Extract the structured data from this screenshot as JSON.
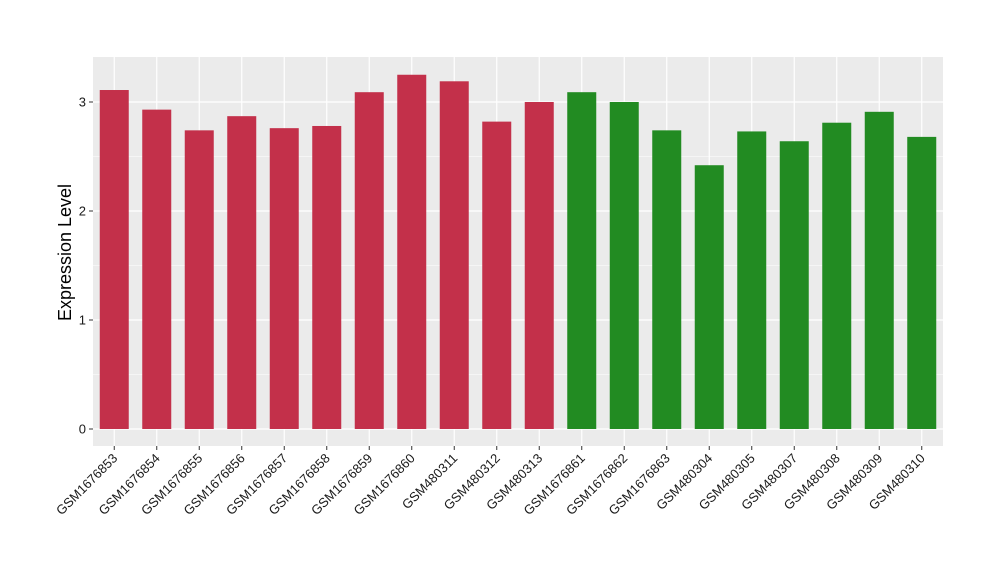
{
  "chart_data": {
    "type": "bar",
    "title": "",
    "xlabel": "",
    "ylabel": "Expression Level",
    "ylim": [
      0,
      3.4
    ],
    "yticks": [
      0,
      1,
      2,
      3
    ],
    "grid": true,
    "colors": {
      "group_a": "#C3304A",
      "group_b": "#228B22",
      "panel": "#EBEBEB",
      "gridline": "#FFFFFF"
    },
    "categories": [
      "GSM1676853",
      "GSM1676854",
      "GSM1676855",
      "GSM1676856",
      "GSM1676857",
      "GSM1676858",
      "GSM1676859",
      "GSM1676860",
      "GSM480311",
      "GSM480312",
      "GSM480313",
      "GSM1676861",
      "GSM1676862",
      "GSM1676863",
      "GSM480304",
      "GSM480305",
      "GSM480307",
      "GSM480308",
      "GSM480309",
      "GSM480310"
    ],
    "values": [
      3.11,
      2.93,
      2.74,
      2.87,
      2.76,
      2.78,
      3.09,
      3.25,
      3.19,
      2.82,
      3.0,
      3.09,
      3.0,
      2.74,
      2.42,
      2.73,
      2.64,
      2.81,
      2.91,
      2.68
    ],
    "groups": [
      "a",
      "a",
      "a",
      "a",
      "a",
      "a",
      "a",
      "a",
      "a",
      "a",
      "a",
      "b",
      "b",
      "b",
      "b",
      "b",
      "b",
      "b",
      "b",
      "b"
    ]
  }
}
